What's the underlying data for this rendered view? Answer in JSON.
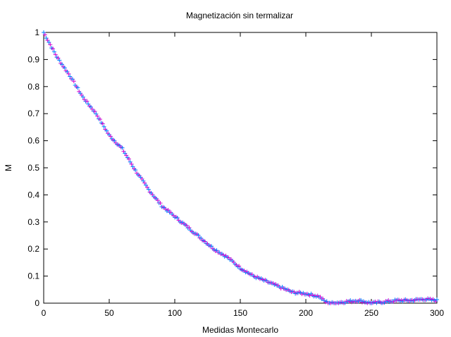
{
  "chart_data": {
    "type": "scatter",
    "title": "Magnetización sin termalizar",
    "xlabel": "Medidas Montecarlo",
    "ylabel": "M",
    "xlim": [
      0,
      300
    ],
    "ylim": [
      0,
      1
    ],
    "xticks": [
      0,
      50,
      100,
      150,
      200,
      250,
      300
    ],
    "yticks": [
      0,
      0.1,
      0.2,
      0.3,
      0.4,
      0.5,
      0.6,
      0.7,
      0.8,
      0.9,
      1
    ],
    "ytick_labels": [
      "0",
      "0.1",
      "0.2",
      "0.3",
      "0.4",
      "0.5",
      "0.6",
      "0.7",
      "0.8",
      "0.9",
      "1"
    ],
    "grid": false,
    "marker": "plus",
    "colors": [
      "#0080ff",
      "#d000d0"
    ],
    "keypoints": [
      [
        0,
        1.0
      ],
      [
        10,
        0.91
      ],
      [
        20,
        0.84
      ],
      [
        30,
        0.76
      ],
      [
        40,
        0.7
      ],
      [
        50,
        0.62
      ],
      [
        60,
        0.57
      ],
      [
        70,
        0.49
      ],
      [
        80,
        0.42
      ],
      [
        90,
        0.36
      ],
      [
        100,
        0.32
      ],
      [
        110,
        0.28
      ],
      [
        120,
        0.24
      ],
      [
        130,
        0.2
      ],
      [
        140,
        0.17
      ],
      [
        150,
        0.13
      ],
      [
        160,
        0.1
      ],
      [
        170,
        0.08
      ],
      [
        180,
        0.06
      ],
      [
        190,
        0.04
      ],
      [
        200,
        0.035
      ],
      [
        210,
        0.025
      ],
      [
        215,
        0.005
      ],
      [
        220,
        0.0
      ],
      [
        230,
        0.005
      ],
      [
        240,
        0.01
      ],
      [
        250,
        0.0
      ],
      [
        260,
        0.005
      ],
      [
        270,
        0.01
      ],
      [
        280,
        0.01
      ],
      [
        290,
        0.015
      ],
      [
        300,
        0.01
      ]
    ]
  }
}
